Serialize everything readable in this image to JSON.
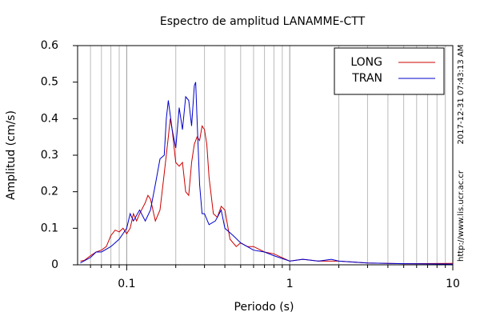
{
  "chart_data": {
    "type": "line",
    "title": "Espectro de amplitud LANAMME-CTT",
    "xlabel": "Periodo (s)",
    "ylabel": "Amplitud (cm/s)",
    "annotations": [
      "2017-12-31 07:43:13 AM",
      "http://www.lis.ucr.ac.cr"
    ],
    "xscale": "log",
    "xlim": [
      0.05,
      10
    ],
    "ylim": [
      0,
      0.6
    ],
    "xticks": [
      0.1,
      1,
      10
    ],
    "xminorticks": [
      0.06,
      0.07,
      0.08,
      0.09,
      0.2,
      0.3,
      0.4,
      0.5,
      0.6,
      0.7,
      0.8,
      0.9,
      2,
      3,
      4,
      5,
      6,
      7,
      8,
      9
    ],
    "yticks": [
      0,
      0.1,
      0.2,
      0.3,
      0.4,
      0.5,
      0.6
    ],
    "grid": true,
    "legend": "upper right",
    "series": [
      {
        "name": "LONG",
        "color": "#cc0000",
        "x": [
          0.052,
          0.055,
          0.06,
          0.065,
          0.07,
          0.075,
          0.08,
          0.085,
          0.09,
          0.095,
          0.1,
          0.105,
          0.11,
          0.115,
          0.12,
          0.13,
          0.135,
          0.14,
          0.15,
          0.16,
          0.17,
          0.18,
          0.185,
          0.19,
          0.2,
          0.21,
          0.22,
          0.23,
          0.24,
          0.25,
          0.26,
          0.27,
          0.28,
          0.29,
          0.3,
          0.31,
          0.32,
          0.34,
          0.36,
          0.38,
          0.4,
          0.43,
          0.47,
          0.5,
          0.55,
          0.6,
          0.7,
          0.8,
          1.0,
          1.2,
          1.5,
          2,
          3,
          5,
          10
        ],
        "values": [
          0.01,
          0.012,
          0.025,
          0.035,
          0.04,
          0.05,
          0.08,
          0.095,
          0.09,
          0.1,
          0.085,
          0.1,
          0.14,
          0.12,
          0.14,
          0.17,
          0.19,
          0.18,
          0.12,
          0.15,
          0.25,
          0.35,
          0.4,
          0.37,
          0.28,
          0.27,
          0.28,
          0.2,
          0.19,
          0.28,
          0.33,
          0.35,
          0.34,
          0.38,
          0.37,
          0.33,
          0.24,
          0.14,
          0.13,
          0.16,
          0.15,
          0.07,
          0.05,
          0.06,
          0.05,
          0.05,
          0.035,
          0.03,
          0.01,
          0.015,
          0.01,
          0.01,
          0.005,
          0.003,
          0.004
        ]
      },
      {
        "name": "TRAN",
        "color": "#0000cc",
        "x": [
          0.052,
          0.06,
          0.065,
          0.07,
          0.08,
          0.09,
          0.1,
          0.105,
          0.11,
          0.12,
          0.13,
          0.14,
          0.15,
          0.16,
          0.17,
          0.175,
          0.18,
          0.19,
          0.2,
          0.21,
          0.22,
          0.23,
          0.24,
          0.25,
          0.26,
          0.265,
          0.27,
          0.28,
          0.29,
          0.3,
          0.32,
          0.35,
          0.38,
          0.4,
          0.45,
          0.5,
          0.6,
          0.7,
          0.8,
          1.0,
          1.2,
          1.5,
          1.8,
          2,
          3,
          5,
          10
        ],
        "values": [
          0.005,
          0.02,
          0.035,
          0.035,
          0.05,
          0.07,
          0.1,
          0.14,
          0.12,
          0.15,
          0.12,
          0.15,
          0.22,
          0.29,
          0.3,
          0.4,
          0.45,
          0.37,
          0.32,
          0.43,
          0.37,
          0.46,
          0.45,
          0.38,
          0.49,
          0.5,
          0.4,
          0.22,
          0.14,
          0.14,
          0.11,
          0.12,
          0.15,
          0.1,
          0.08,
          0.06,
          0.04,
          0.035,
          0.025,
          0.01,
          0.015,
          0.01,
          0.015,
          0.01,
          0.005,
          0.003,
          0.002
        ]
      }
    ]
  }
}
